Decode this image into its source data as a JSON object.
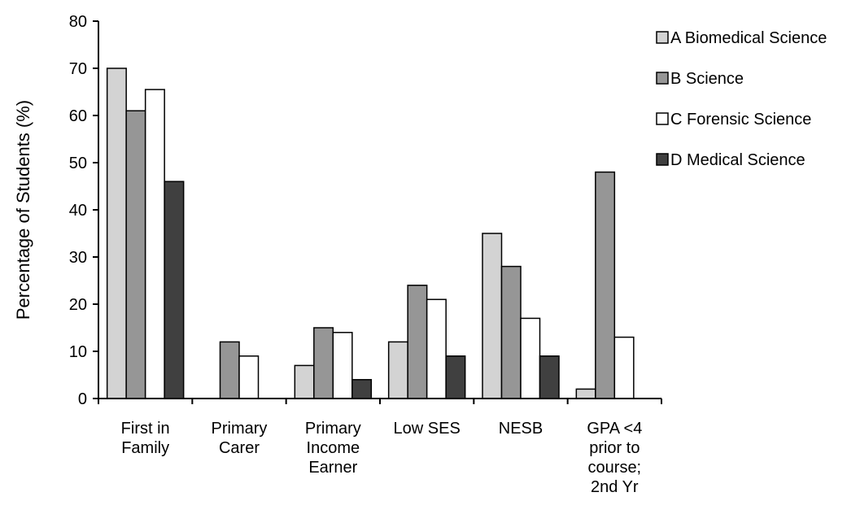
{
  "chart_data": {
    "type": "bar",
    "title": "",
    "xlabel": "",
    "ylabel": "Percentage of Students (%)",
    "ylim": [
      0,
      80
    ],
    "yticks": [
      0,
      10,
      20,
      30,
      40,
      50,
      60,
      70,
      80
    ],
    "grid": false,
    "legend_position": "top-right",
    "categories": [
      [
        "First in",
        "Family"
      ],
      [
        "Primary",
        "Carer"
      ],
      [
        "Primary",
        "Income",
        "Earner"
      ],
      [
        "Low SES"
      ],
      [
        "NESB"
      ],
      [
        "GPA <4",
        "prior to",
        "course;",
        "2nd Yr"
      ]
    ],
    "series": [
      {
        "name": "A Biomedical Science",
        "color": "#d3d3d3",
        "values": [
          70,
          0,
          7,
          12,
          35,
          2
        ]
      },
      {
        "name": "B Science",
        "color": "#969696",
        "values": [
          61,
          12,
          15,
          24,
          28,
          48
        ]
      },
      {
        "name": "C Forensic Science",
        "color": "#ffffff",
        "values": [
          65.5,
          9,
          14,
          21,
          17,
          13
        ]
      },
      {
        "name": "D Medical Science",
        "color": "#404040",
        "values": [
          46,
          0,
          4,
          9,
          9,
          0
        ]
      }
    ]
  }
}
